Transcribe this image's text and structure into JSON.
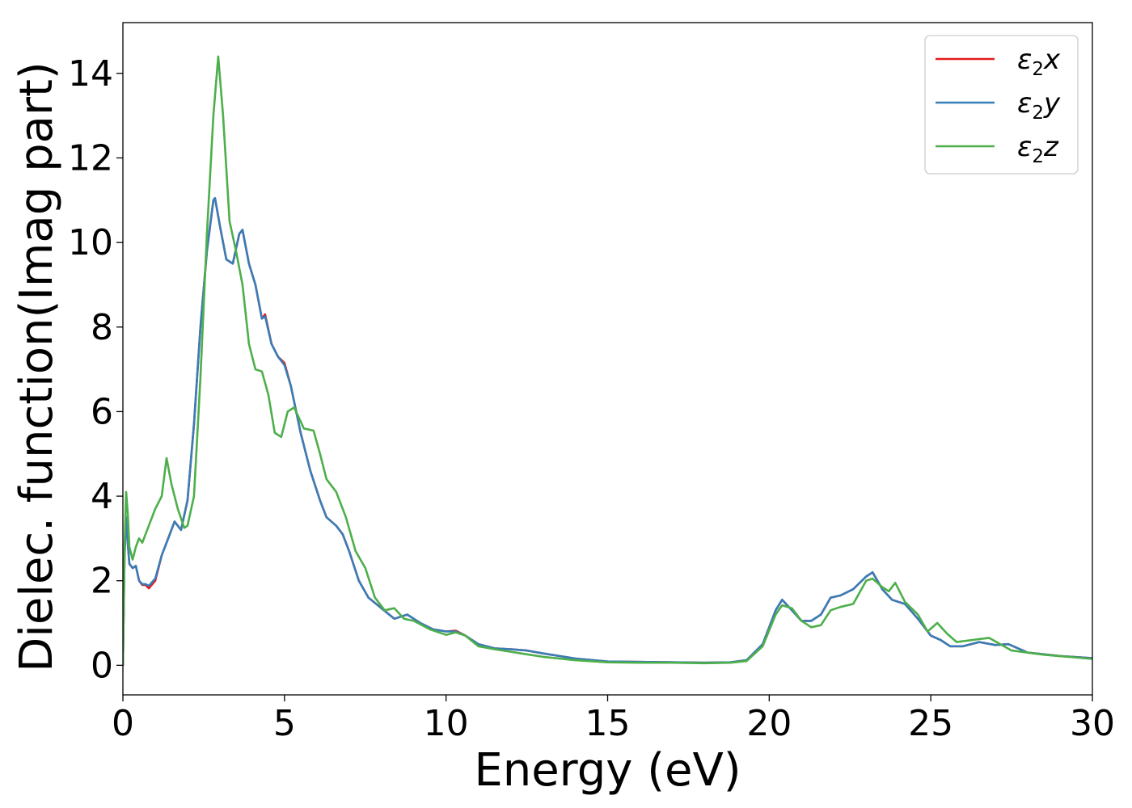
{
  "chart_data": {
    "type": "line",
    "xlabel": "Energy (eV)",
    "ylabel": "Dielec. function(Imag part)",
    "xlim": [
      0,
      30
    ],
    "ylim": [
      -0.7,
      15.2
    ],
    "xticks": [
      0,
      5,
      10,
      15,
      20,
      25,
      30
    ],
    "yticks": [
      0,
      2,
      4,
      6,
      8,
      10,
      12,
      14
    ],
    "xtick_labels": [
      "0",
      "5",
      "10",
      "15",
      "20",
      "25",
      "30"
    ],
    "ytick_labels": [
      "0",
      "2",
      "4",
      "6",
      "8",
      "10",
      "12",
      "14"
    ],
    "grid": false,
    "legend_position": "top-right",
    "series": [
      {
        "name": "ε2x",
        "legend": {
          "base": "ε",
          "sub": "2",
          "var": "x"
        },
        "color": "#e41a1c",
        "x": [
          0,
          0.05,
          0.1,
          0.15,
          0.2,
          0.3,
          0.4,
          0.5,
          0.6,
          0.7,
          0.8,
          1.0,
          1.2,
          1.4,
          1.6,
          1.8,
          2.0,
          2.2,
          2.4,
          2.6,
          2.8,
          2.85,
          3.0,
          3.2,
          3.4,
          3.6,
          3.7,
          3.9,
          4.1,
          4.3,
          4.4,
          4.6,
          4.8,
          5.0,
          5.2,
          5.5,
          5.8,
          6.1,
          6.3,
          6.6,
          6.8,
          7.0,
          7.3,
          7.6,
          8.0,
          8.4,
          8.8,
          9.2,
          9.6,
          10.0,
          10.3,
          10.6,
          11.0,
          11.5,
          12.0,
          12.5,
          13.0,
          14.0,
          15.0,
          16.0,
          17.0,
          18.0,
          18.8,
          19.3,
          19.8,
          20.2,
          20.4,
          20.7,
          21.0,
          21.3,
          21.6,
          21.9,
          22.2,
          22.6,
          23.0,
          23.2,
          23.5,
          23.8,
          24.2,
          24.6,
          25.0,
          25.3,
          25.6,
          26.0,
          26.5,
          27.0,
          27.4,
          28.0,
          29.0,
          30.0
        ],
        "y": [
          0.0,
          2.6,
          3.5,
          2.9,
          2.4,
          2.3,
          2.35,
          2.0,
          1.9,
          1.9,
          1.82,
          2.0,
          2.6,
          3.0,
          3.4,
          3.2,
          3.9,
          5.7,
          8.0,
          9.8,
          11.0,
          11.05,
          10.4,
          9.6,
          9.5,
          10.2,
          10.3,
          9.5,
          9.0,
          8.2,
          8.3,
          7.6,
          7.3,
          7.15,
          6.6,
          5.5,
          4.6,
          3.9,
          3.5,
          3.3,
          3.1,
          2.7,
          2.0,
          1.6,
          1.35,
          1.1,
          1.2,
          1.0,
          0.85,
          0.8,
          0.82,
          0.7,
          0.5,
          0.4,
          0.38,
          0.35,
          0.28,
          0.16,
          0.09,
          0.08,
          0.07,
          0.06,
          0.07,
          0.12,
          0.5,
          1.3,
          1.55,
          1.3,
          1.05,
          1.05,
          1.2,
          1.6,
          1.65,
          1.8,
          2.1,
          2.2,
          1.8,
          1.55,
          1.45,
          1.1,
          0.7,
          0.6,
          0.45,
          0.45,
          0.55,
          0.48,
          0.5,
          0.3,
          0.22,
          0.17
        ]
      },
      {
        "name": "ε2y",
        "legend": {
          "base": "ε",
          "sub": "2",
          "var": "y"
        },
        "color": "#377eb8",
        "x": [
          0,
          0.05,
          0.1,
          0.15,
          0.2,
          0.3,
          0.4,
          0.5,
          0.6,
          0.7,
          0.8,
          1.0,
          1.2,
          1.4,
          1.6,
          1.8,
          2.0,
          2.2,
          2.4,
          2.6,
          2.8,
          2.85,
          3.0,
          3.2,
          3.4,
          3.6,
          3.7,
          3.9,
          4.1,
          4.3,
          4.4,
          4.6,
          4.8,
          5.0,
          5.2,
          5.5,
          5.8,
          6.1,
          6.3,
          6.6,
          6.8,
          7.0,
          7.3,
          7.6,
          8.0,
          8.4,
          8.8,
          9.2,
          9.6,
          10.0,
          10.3,
          10.6,
          11.0,
          11.5,
          12.0,
          12.5,
          13.0,
          14.0,
          15.0,
          16.0,
          17.0,
          18.0,
          18.8,
          19.3,
          19.8,
          20.2,
          20.4,
          20.7,
          21.0,
          21.3,
          21.6,
          21.9,
          22.2,
          22.6,
          23.0,
          23.2,
          23.5,
          23.8,
          24.2,
          24.6,
          25.0,
          25.3,
          25.6,
          26.0,
          26.5,
          27.0,
          27.4,
          28.0,
          29.0,
          30.0
        ],
        "y": [
          0.0,
          2.6,
          3.5,
          2.9,
          2.4,
          2.3,
          2.35,
          2.0,
          1.92,
          1.92,
          1.88,
          2.05,
          2.6,
          3.0,
          3.4,
          3.2,
          3.9,
          5.7,
          8.0,
          9.8,
          11.0,
          11.05,
          10.4,
          9.6,
          9.5,
          10.2,
          10.3,
          9.5,
          9.0,
          8.2,
          8.25,
          7.6,
          7.3,
          7.1,
          6.6,
          5.5,
          4.6,
          3.9,
          3.5,
          3.3,
          3.1,
          2.7,
          2.0,
          1.6,
          1.35,
          1.1,
          1.2,
          1.0,
          0.85,
          0.8,
          0.8,
          0.7,
          0.5,
          0.4,
          0.38,
          0.35,
          0.28,
          0.16,
          0.09,
          0.08,
          0.07,
          0.06,
          0.07,
          0.12,
          0.5,
          1.3,
          1.55,
          1.3,
          1.05,
          1.05,
          1.2,
          1.6,
          1.65,
          1.8,
          2.1,
          2.2,
          1.8,
          1.55,
          1.45,
          1.1,
          0.7,
          0.6,
          0.45,
          0.45,
          0.55,
          0.48,
          0.5,
          0.3,
          0.22,
          0.17
        ]
      },
      {
        "name": "ε2z",
        "legend": {
          "base": "ε",
          "sub": "2",
          "var": "z"
        },
        "color": "#4daf4a",
        "x": [
          0,
          0.05,
          0.1,
          0.15,
          0.2,
          0.3,
          0.4,
          0.5,
          0.6,
          0.7,
          0.8,
          1.0,
          1.2,
          1.35,
          1.5,
          1.7,
          1.9,
          2.0,
          2.2,
          2.4,
          2.6,
          2.8,
          2.95,
          3.1,
          3.3,
          3.5,
          3.7,
          3.9,
          4.1,
          4.3,
          4.5,
          4.7,
          4.9,
          5.1,
          5.3,
          5.6,
          5.9,
          6.1,
          6.3,
          6.6,
          6.9,
          7.2,
          7.5,
          7.8,
          8.1,
          8.4,
          8.7,
          9.0,
          9.5,
          10.0,
          10.3,
          10.6,
          11.0,
          11.5,
          12.0,
          12.5,
          13.0,
          14.0,
          15.0,
          16.0,
          17.0,
          18.0,
          18.8,
          19.3,
          19.8,
          20.2,
          20.4,
          20.7,
          21.0,
          21.3,
          21.6,
          21.9,
          22.2,
          22.6,
          23.0,
          23.2,
          23.5,
          23.7,
          23.9,
          24.2,
          24.6,
          24.9,
          25.2,
          25.5,
          25.8,
          26.3,
          26.8,
          27.5,
          28.5,
          30.0
        ],
        "y": [
          0.0,
          2.8,
          4.1,
          3.6,
          2.8,
          2.5,
          2.8,
          3.0,
          2.9,
          3.1,
          3.3,
          3.7,
          4.0,
          4.9,
          4.3,
          3.7,
          3.25,
          3.3,
          4.0,
          6.8,
          10.2,
          13.0,
          14.4,
          13.0,
          10.5,
          9.8,
          9.0,
          7.6,
          7.0,
          6.95,
          6.4,
          5.5,
          5.4,
          6.0,
          6.1,
          5.6,
          5.55,
          5.0,
          4.4,
          4.1,
          3.5,
          2.7,
          2.3,
          1.6,
          1.3,
          1.35,
          1.1,
          1.05,
          0.85,
          0.72,
          0.78,
          0.7,
          0.45,
          0.38,
          0.32,
          0.26,
          0.2,
          0.12,
          0.07,
          0.06,
          0.06,
          0.05,
          0.06,
          0.1,
          0.45,
          1.2,
          1.42,
          1.35,
          1.05,
          0.9,
          0.95,
          1.3,
          1.38,
          1.45,
          2.0,
          2.05,
          1.85,
          1.75,
          1.95,
          1.5,
          1.2,
          0.8,
          1.0,
          0.75,
          0.55,
          0.6,
          0.65,
          0.35,
          0.25,
          0.15
        ]
      }
    ]
  }
}
